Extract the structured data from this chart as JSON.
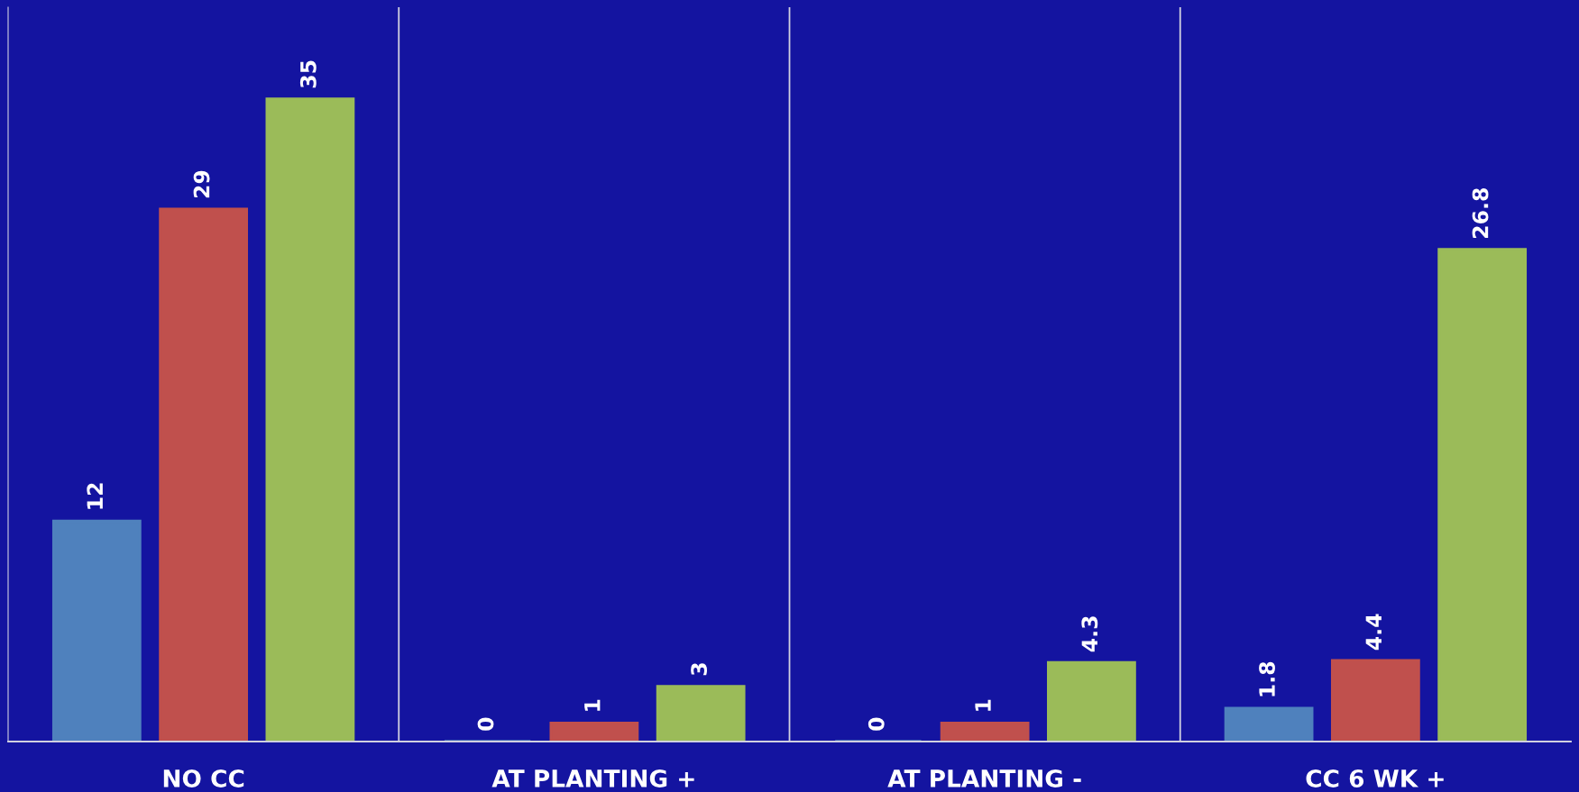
{
  "chart_data": {
    "type": "bar",
    "categories": [
      "NO CC",
      "AT PLANTING +",
      "AT PLANTING -",
      "CC 6 WK +"
    ],
    "series": [
      {
        "color": "#4f81bd",
        "values": [
          12,
          0,
          0,
          1.8
        ]
      },
      {
        "color": "#c0504d",
        "values": [
          29,
          1,
          1,
          4.4
        ]
      },
      {
        "color": "#9bbb59",
        "values": [
          35,
          3,
          4.3,
          26.8
        ]
      }
    ],
    "ylim": [
      0,
      40
    ],
    "data_labels": true,
    "grid": "x",
    "legend": false
  }
}
